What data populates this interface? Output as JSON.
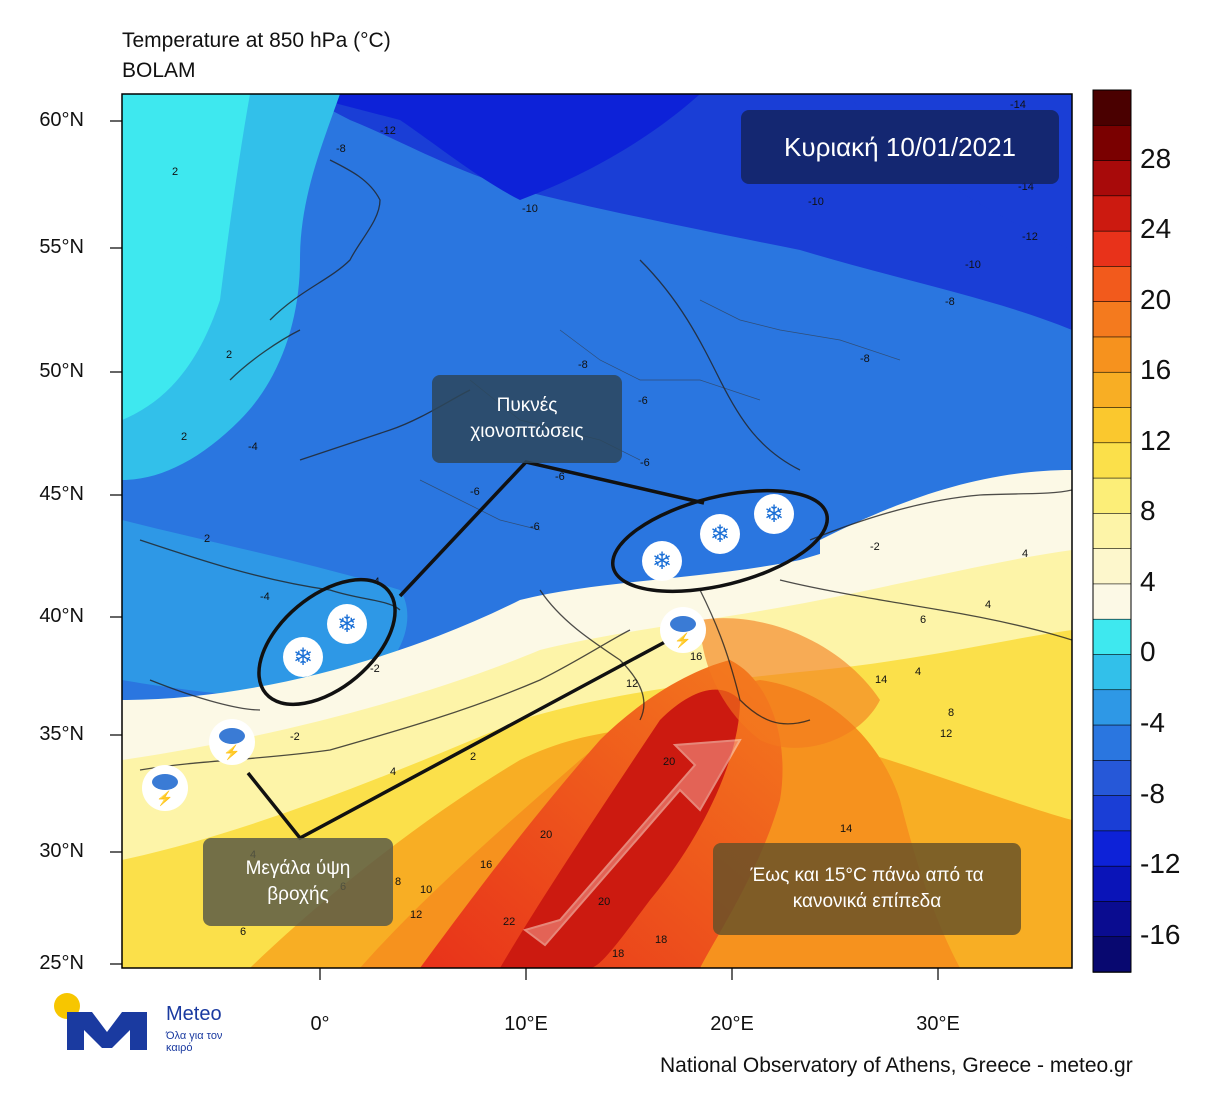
{
  "header": {
    "title": "Temperature at 850 hPa (°C)",
    "subtitle": "BOLAM"
  },
  "map": {
    "lat_labels": [
      "60°N",
      "55°N",
      "50°N",
      "45°N",
      "40°N",
      "35°N",
      "30°N",
      "25°N"
    ],
    "lon_labels": [
      "0°",
      "10°E",
      "20°E",
      "30°E"
    ],
    "date_label": "Κυριακή 10/01/2021",
    "annotations": {
      "snow": [
        "Πυκνές",
        "χιονοπτώσεις"
      ],
      "rain": [
        "Μεγάλα ύψη",
        "βροχής"
      ],
      "warm": [
        "Έως και 15°C πάνω από τα",
        "κανονικά επίπεδα"
      ]
    },
    "contour_labels": [
      "-14",
      "-12",
      "-10",
      "-8",
      "-6",
      "-4",
      "-2",
      "2",
      "4",
      "6",
      "8",
      "10",
      "12",
      "14",
      "16",
      "18",
      "20",
      "22"
    ]
  },
  "colorbar": {
    "labels": [
      "28",
      "24",
      "20",
      "16",
      "12",
      "8",
      "4",
      "0",
      "-4",
      "-8",
      "-12",
      "-16"
    ],
    "colors": [
      "#4a0000",
      "#7a0000",
      "#a80a0a",
      "#cc1a10",
      "#e8321a",
      "#f25a1c",
      "#f47a1e",
      "#f6921e",
      "#f8ae24",
      "#fac82e",
      "#fbe04a",
      "#fcee78",
      "#fdf4a8",
      "#fdf7cc",
      "#fcf9e6",
      "#3ee8ef",
      "#32c0ea",
      "#2e98e6",
      "#2a76e0",
      "#2658d8",
      "#1a3ed6",
      "#0d22d8",
      "#0a14b8",
      "#0a0c90",
      "#080870"
    ]
  },
  "footer": {
    "credit": "National Observatory of Athens, Greece - meteo.gr"
  },
  "logo": {
    "name": "Meteo",
    "tagline": "Όλα για τον καιρό"
  }
}
